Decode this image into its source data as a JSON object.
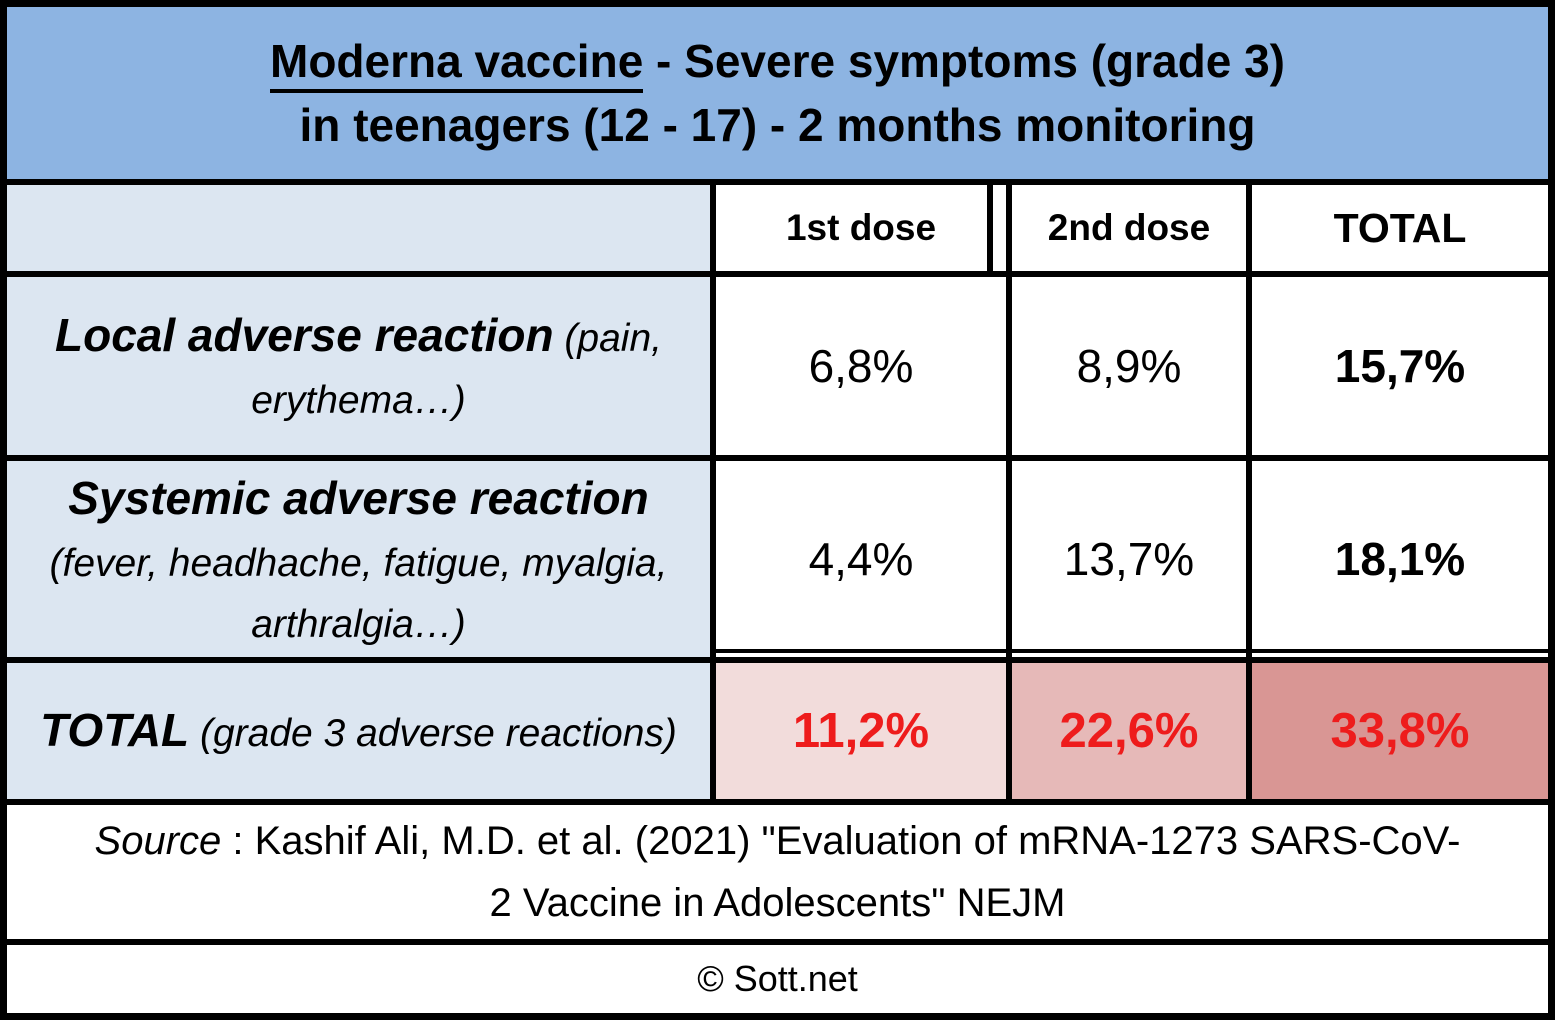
{
  "title": {
    "underlined": "Moderna vaccine",
    "line1_rest": " - Severe symptoms (grade 3)",
    "line2": "in teenagers (12 - 17) - 2 months monitoring"
  },
  "table": {
    "column_headers": {
      "dose1": "1st dose",
      "dose2": "2nd dose",
      "total": "TOTAL"
    },
    "rows": [
      {
        "label": "Local adverse reaction",
        "label_note": " (pain, erythema…)",
        "dose1": "6,8%",
        "dose2": "8,9%",
        "total": "15,7%"
      },
      {
        "label": "Systemic adverse reaction",
        "label_note": "(fever, headhache, fatigue, myalgia, arthralgia…)",
        "dose1": "4,4%",
        "dose2": "13,7%",
        "total": "18,1%"
      }
    ],
    "total_row": {
      "label": "TOTAL",
      "label_note": " (grade 3 adverse reactions)",
      "dose1": "11,2%",
      "dose2": "22,6%",
      "total": "33,8%"
    }
  },
  "footer": {
    "source_prefix": "Source",
    "source_line1_rest": " : Kashif Ali, M.D. et al. (2021) \"Evaluation of mRNA-1273 SARS-CoV-",
    "source_line2": "2 Vaccine in Adolescents\" NEJM",
    "credit": "© Sott.net"
  },
  "colors": {
    "title_bg": "#8DB4E2",
    "label_bg": "#DCE6F1",
    "total_dose1_bg": "#F2DCDB",
    "total_dose2_bg": "#E6B9B8",
    "total_total_bg": "#D99694",
    "total_text": "#EE1C1C",
    "border": "#000000"
  },
  "chart_data": {
    "type": "table",
    "title": "Moderna vaccine - Severe symptoms (grade 3) in teenagers (12 - 17) - 2 months monitoring",
    "columns": [
      "1st dose",
      "2nd dose",
      "TOTAL"
    ],
    "rows": [
      {
        "label": "Local adverse reaction (pain, erythema…)",
        "values_pct": [
          6.8,
          8.9,
          15.7
        ]
      },
      {
        "label": "Systemic adverse reaction (fever, headhache, fatigue, myalgia, arthralgia…)",
        "values_pct": [
          4.4,
          13.7,
          18.1
        ]
      },
      {
        "label": "TOTAL (grade 3 adverse reactions)",
        "values_pct": [
          11.2,
          22.6,
          33.8
        ]
      }
    ],
    "unit": "%",
    "source": "Kashif Ali, M.D. et al. (2021) \"Evaluation of mRNA-1273 SARS-CoV-2 Vaccine in Adolescents\" NEJM",
    "credit": "© Sott.net"
  }
}
